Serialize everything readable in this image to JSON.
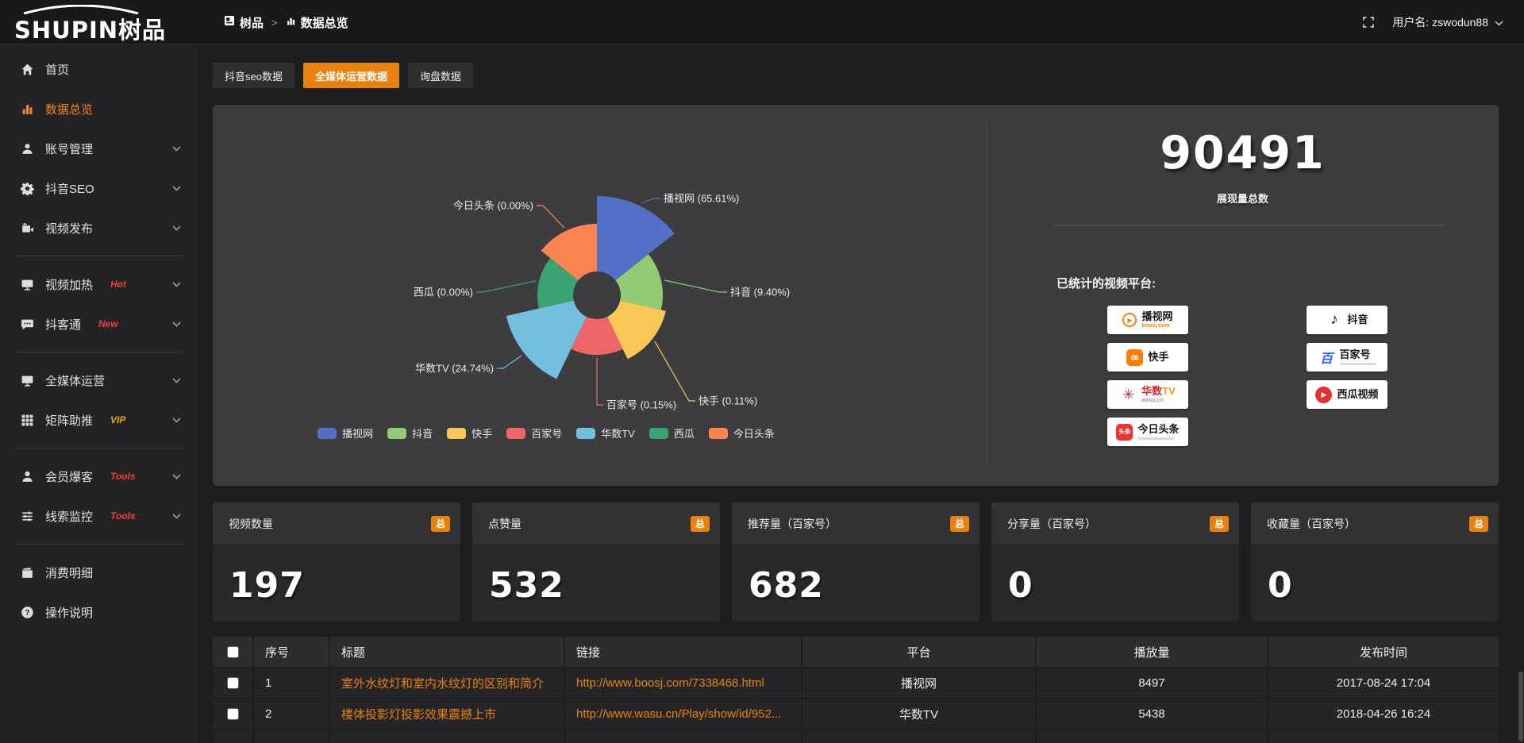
{
  "brand": {
    "logo_en": "SHUPIN",
    "logo_cn": "树品"
  },
  "topbar": {
    "breadcrumb": [
      {
        "label": "树品"
      },
      {
        "label": "数据总览"
      }
    ],
    "breadcrumb_sep": ">",
    "username": "用户名: zswodun88"
  },
  "sidebar": {
    "items": [
      {
        "key": "home",
        "icon": "home",
        "label": "首页"
      },
      {
        "key": "data-overview",
        "icon": "chart",
        "label": "数据总览",
        "active": true
      },
      {
        "key": "account",
        "icon": "user",
        "label": "账号管理",
        "chevron": true
      },
      {
        "key": "douyin-seo",
        "icon": "gear",
        "label": "抖音SEO",
        "chevron": true
      },
      {
        "key": "video-publish",
        "icon": "publish",
        "label": "视频发布",
        "chevron": true
      },
      {
        "divider": true
      },
      {
        "key": "video-heating",
        "icon": "heat",
        "label": "视频加热",
        "tag": "Hot",
        "tag_color": "#f03e3e",
        "chevron": true
      },
      {
        "key": "douketong",
        "icon": "chat",
        "label": "抖客通",
        "tag": "New",
        "tag_color": "#f03e3e",
        "chevron": true
      },
      {
        "divider": true
      },
      {
        "key": "media-operation",
        "icon": "monitor",
        "label": "全媒体运营",
        "chevron": true
      },
      {
        "key": "matrix-boost",
        "icon": "grid",
        "label": "矩阵助推",
        "tag": "VIP",
        "tag_color": "#efa320",
        "chevron": true
      },
      {
        "divider": true
      },
      {
        "key": "member-baoke",
        "icon": "member",
        "label": "会员爆客",
        "tag": "Tools",
        "tag_color": "#f03e3e",
        "chevron": true
      },
      {
        "key": "clue-monitor",
        "icon": "sliders",
        "label": "线索监控",
        "tag": "Tools",
        "tag_color": "#f03e3e",
        "chevron": true
      },
      {
        "divider": true
      },
      {
        "key": "expense-detail",
        "icon": "wallet",
        "label": "消费明细"
      },
      {
        "key": "instructions",
        "icon": "question",
        "label": "操作说明"
      }
    ]
  },
  "tabs": [
    {
      "key": "douyin-seo-data",
      "label": "抖音seo数据"
    },
    {
      "key": "media-operation-data",
      "label": "全媒体运营数据",
      "active": true
    },
    {
      "key": "inquiry-data",
      "label": "询盘数据"
    }
  ],
  "chart_data": {
    "type": "pie",
    "variant": "rose",
    "label_format": "{name} ({percent}%)",
    "legend_position": "bottom",
    "items": [
      {
        "name": "播视网",
        "percent": 65.61,
        "color": "#5470c6"
      },
      {
        "name": "抖音",
        "percent": 9.4,
        "color": "#91cc75"
      },
      {
        "name": "快手",
        "percent": 0.11,
        "color": "#fac858"
      },
      {
        "name": "百家号",
        "percent": 0.15,
        "color": "#ee6666"
      },
      {
        "name": "华数TV",
        "percent": 24.74,
        "color": "#73c0de"
      },
      {
        "name": "西瓜",
        "percent": 0.0,
        "color": "#3ba272"
      },
      {
        "name": "今日头条",
        "percent": 0.0,
        "color": "#fc8452"
      }
    ]
  },
  "summary": {
    "total": "90491",
    "total_label": "展现量总数",
    "platforms_title": "已统计的视频平台:",
    "platforms_left": [
      {
        "id": "boosj",
        "name": "播视网",
        "sub": "boosj.com"
      },
      {
        "id": "kuaishou",
        "name": "快手"
      },
      {
        "id": "wasu",
        "name": "华数TV",
        "sub": "wasu.cn"
      },
      {
        "id": "toutiao",
        "name": "今日头条",
        "tagline_bar": true
      }
    ],
    "platforms_right": [
      {
        "id": "douyin",
        "name": "抖音"
      },
      {
        "id": "baijia",
        "name": "百家号",
        "tagline_bar": true
      },
      {
        "id": "xigua",
        "name": "西瓜视频"
      }
    ]
  },
  "stat_cards": [
    {
      "label": "视频数量",
      "badge": "总",
      "value": "197"
    },
    {
      "label": "点赞量",
      "badge": "总",
      "value": "532"
    },
    {
      "label": "推荐量（百家号）",
      "badge": "总",
      "value": "682"
    },
    {
      "label": "分享量（百家号）",
      "badge": "总",
      "value": "0"
    },
    {
      "label": "收藏量（百家号）",
      "badge": "总",
      "value": "0"
    }
  ],
  "table": {
    "columns": [
      "",
      "序号",
      "标题",
      "链接",
      "平台",
      "播放量",
      "发布时间"
    ],
    "rows": [
      {
        "no": "1",
        "title": "室外水纹灯和室内水纹灯的区别和简介",
        "link": "http://www.boosj.com/7338468.html",
        "platform": "播视网",
        "plays": "8497",
        "time": "2017-08-24 17:04"
      },
      {
        "no": "2",
        "title": "楼体投影灯投影效果震撼上市",
        "link": "http://www.wasu.cn/Play/show/id/952...",
        "platform": "华数TV",
        "plays": "5438",
        "time": "2018-04-26 16:24"
      }
    ]
  },
  "colors": {
    "accent_orange": "#e8820c",
    "panel_bg": "#3d3d40",
    "sidebar_active": "#ef8a1d"
  }
}
